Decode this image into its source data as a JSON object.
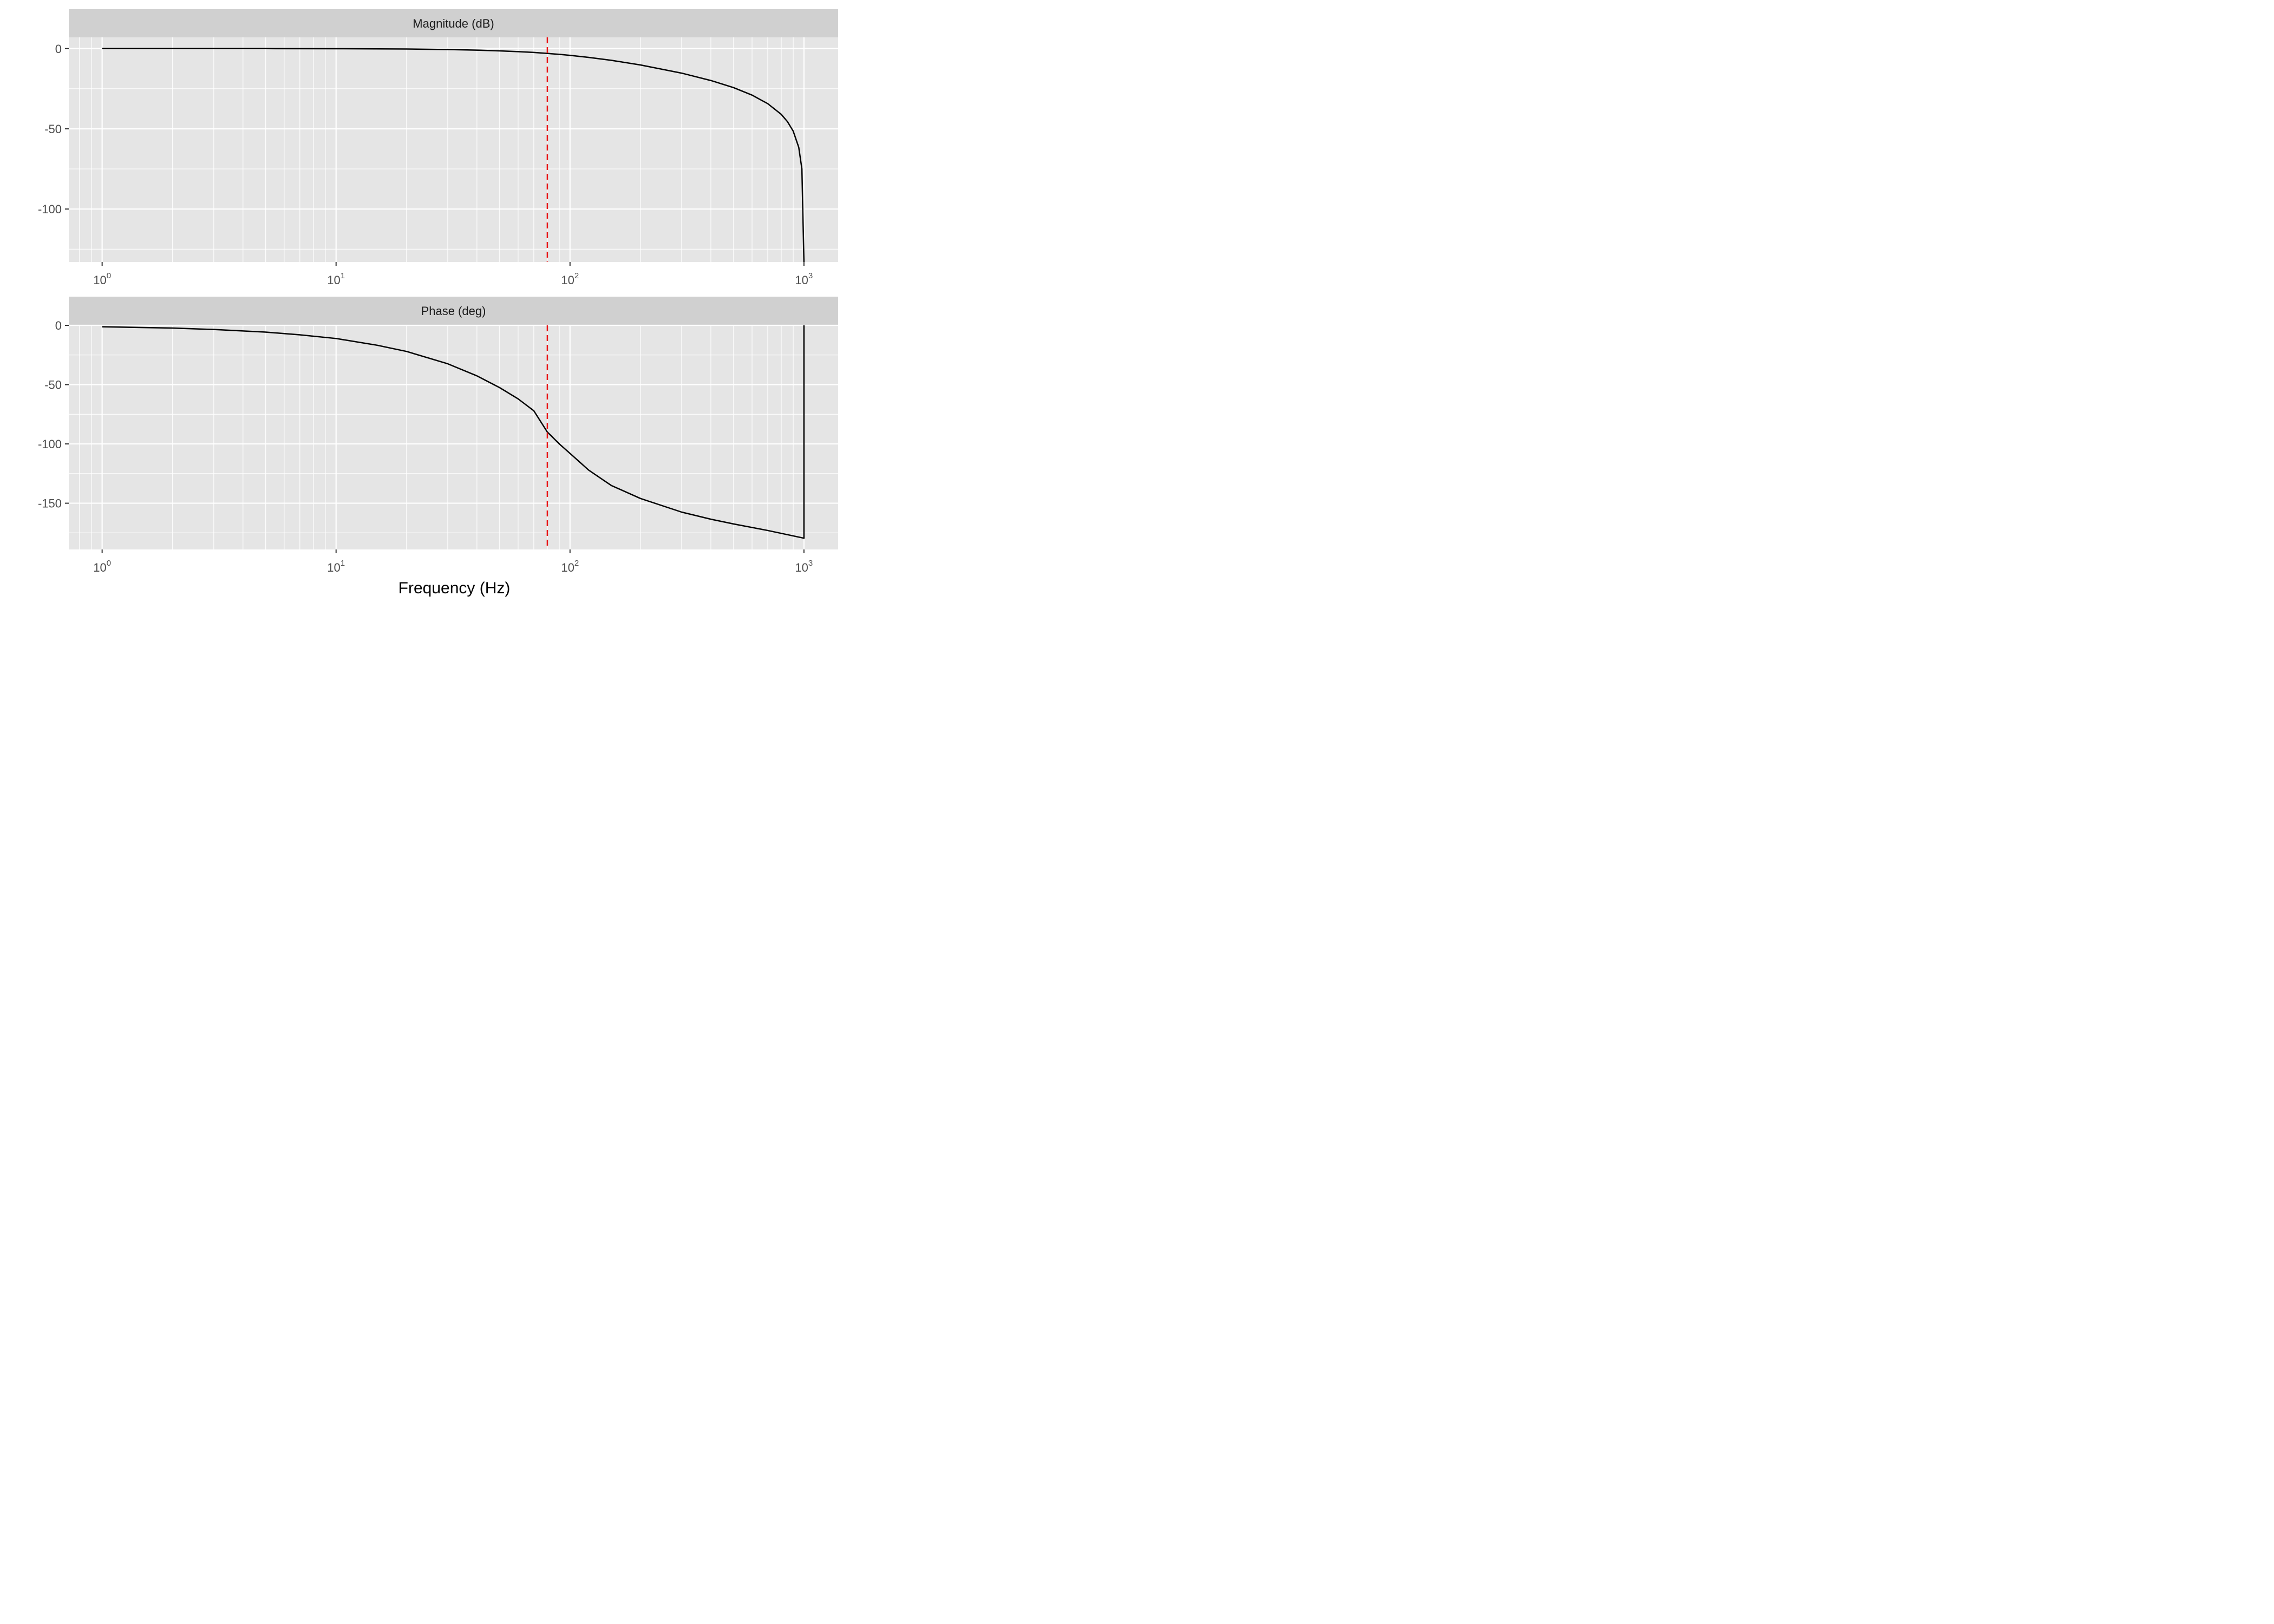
{
  "chart_data": [
    {
      "type": "line",
      "title": "Magnitude (dB)",
      "xlabel": "Frequency (Hz)",
      "x_scale": "log10",
      "xlim": [
        0.72,
        1400
      ],
      "ylim": [
        -133,
        7
      ],
      "x_ticks": [
        {
          "base": "10",
          "exp": "0",
          "value": 1
        },
        {
          "base": "10",
          "exp": "1",
          "value": 10
        },
        {
          "base": "10",
          "exp": "2",
          "value": 100
        },
        {
          "base": "10",
          "exp": "3",
          "value": 1000
        }
      ],
      "y_ticks": [
        {
          "label": "0",
          "value": 0
        },
        {
          "label": "-50",
          "value": -50
        },
        {
          "label": "-100",
          "value": -100
        }
      ],
      "grid": true,
      "series": [
        {
          "color": "#000000",
          "x": [
            1,
            2,
            5,
            10,
            20,
            30,
            40,
            50,
            60,
            70,
            80,
            90,
            100,
            120,
            150,
            200,
            300,
            400,
            500,
            600,
            700,
            800,
            850,
            900,
            950,
            980,
            1000
          ],
          "y": [
            0,
            0,
            -0.02,
            -0.07,
            -0.26,
            -0.58,
            -0.97,
            -1.42,
            -1.9,
            -2.41,
            -3.01,
            -3.6,
            -4.2,
            -5.5,
            -7.3,
            -10.2,
            -15.3,
            -19.9,
            -24.3,
            -29.0,
            -34.3,
            -41.0,
            -45.5,
            -51.5,
            -61.5,
            -75.0,
            -133
          ]
        }
      ],
      "reference_lines": [
        {
          "x": 80,
          "color": "#e8191a",
          "style": "dashed"
        }
      ]
    },
    {
      "type": "line",
      "title": "Phase (deg)",
      "xlabel": "Frequency (Hz)",
      "x_scale": "log10",
      "xlim": [
        0.72,
        1400
      ],
      "ylim": [
        -189,
        0
      ],
      "x_ticks": [
        {
          "base": "10",
          "exp": "0",
          "value": 1
        },
        {
          "base": "10",
          "exp": "1",
          "value": 10
        },
        {
          "base": "10",
          "exp": "2",
          "value": 100
        },
        {
          "base": "10",
          "exp": "3",
          "value": 1000
        }
      ],
      "y_ticks": [
        {
          "label": "0",
          "value": 0
        },
        {
          "label": "-50",
          "value": -50
        },
        {
          "label": "-100",
          "value": -100
        },
        {
          "label": "-150",
          "value": -150
        }
      ],
      "grid": true,
      "series": [
        {
          "color": "#000000",
          "x": [
            1,
            2,
            3,
            5,
            7,
            10,
            15,
            20,
            30,
            40,
            50,
            60,
            70,
            80,
            90,
            100,
            120,
            150,
            200,
            300,
            400,
            500,
            700,
            1000,
            1000
          ],
          "y": [
            -1.2,
            -2.3,
            -3.5,
            -5.7,
            -8.0,
            -11.1,
            -16.8,
            -22.0,
            -32.4,
            -42.6,
            -52.5,
            -62.0,
            -72.0,
            -90.0,
            -100.0,
            -108.0,
            -122.0,
            -135.0,
            -146.0,
            -157.5,
            -163.5,
            -167.5,
            -173.0,
            -179.5,
            0
          ]
        }
      ],
      "reference_lines": [
        {
          "x": 80,
          "color": "#e8191a",
          "style": "dashed"
        }
      ]
    }
  ]
}
